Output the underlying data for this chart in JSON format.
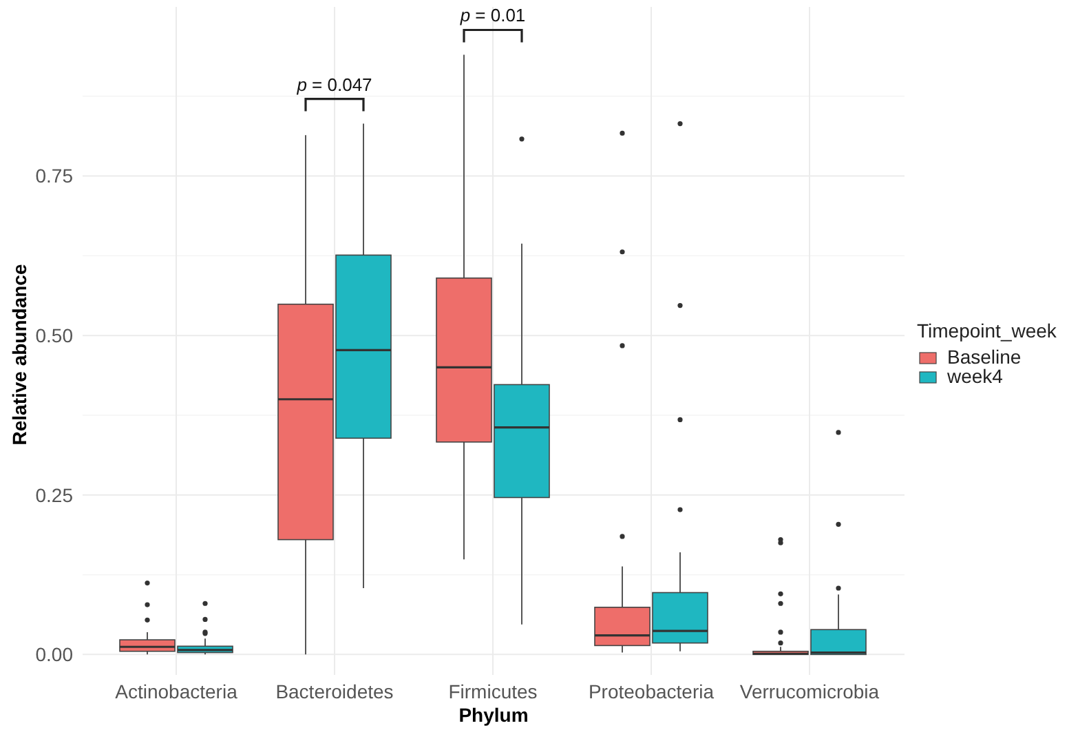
{
  "chart_data": {
    "type": "box",
    "xlabel": "Phylum",
    "ylabel": "Relative abundance",
    "legend_title": "Timepoint_week",
    "legend": "right",
    "grid": true,
    "categories": [
      "Actinobacteria",
      "Bacteroidetes",
      "Firmicutes",
      "Proteobacteria",
      "Verrucomicrobia"
    ],
    "ylim": [
      -0.032,
      1.015
    ],
    "yticks": [
      {
        "value": 0,
        "label": "0.00"
      },
      {
        "value": 0.25,
        "label": "0.25"
      },
      {
        "value": 0.5,
        "label": "0.50"
      },
      {
        "value": 0.75,
        "label": "0.75"
      }
    ],
    "series": [
      {
        "name": "Baseline",
        "color": "#ee6e6a",
        "boxes": [
          {
            "low": 0,
            "q1": 0.005,
            "median": 0.012,
            "q3": 0.023,
            "high": 0.035,
            "outliers": [
              0.112,
              0.078,
              0.054
            ]
          },
          {
            "low": 0,
            "q1": 0.18,
            "median": 0.4,
            "q3": 0.549,
            "high": 0.814
          },
          {
            "low": 0.149,
            "q1": 0.333,
            "median": 0.45,
            "q3": 0.59,
            "high": 0.94
          },
          {
            "low": 0.003,
            "q1": 0.014,
            "median": 0.03,
            "q3": 0.074,
            "high": 0.138,
            "outliers": [
              0.185,
              0.484,
              0.631,
              0.817
            ]
          },
          {
            "low": 0,
            "q1": 0,
            "median": 0.001,
            "q3": 0.005,
            "high": 0.012,
            "outliers": [
              0.18,
              0.175,
              0.095,
              0.08,
              0.035,
              0.018
            ]
          }
        ]
      },
      {
        "name": "week4",
        "color": "#1fb7c1",
        "boxes": [
          {
            "low": 0,
            "q1": 0.003,
            "median": 0.007,
            "q3": 0.013,
            "high": 0.025,
            "outliers": [
              0.08,
              0.055,
              0.035,
              0.033
            ]
          },
          {
            "low": 0.104,
            "q1": 0.339,
            "median": 0.477,
            "q3": 0.626,
            "high": 0.832
          },
          {
            "low": 0.047,
            "q1": 0.246,
            "median": 0.356,
            "q3": 0.423,
            "high": 0.644,
            "outliers": [
              0.808
            ]
          },
          {
            "low": 0.005,
            "q1": 0.018,
            "median": 0.037,
            "q3": 0.097,
            "high": 0.16,
            "outliers": [
              0.227,
              0.368,
              0.547,
              0.832
            ]
          },
          {
            "low": 0,
            "q1": 0,
            "median": 0.003,
            "q3": 0.039,
            "high": 0.094,
            "outliers": [
              0.104,
              0.204,
              0.348
            ]
          }
        ]
      }
    ],
    "annotations": [
      "p = 0.047",
      "p = 0.01"
    ]
  }
}
